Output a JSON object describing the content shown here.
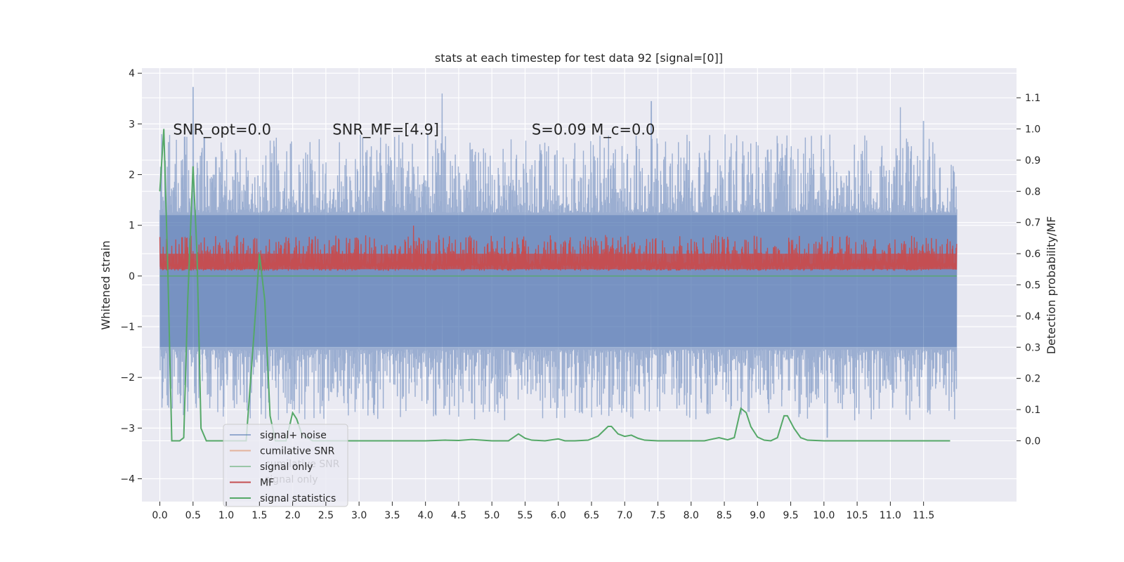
{
  "chart_data": {
    "type": "line",
    "title": "stats at each timestep for test data 92 [signal=[0]]",
    "xlabel": "",
    "ylabel": "Whitened strain",
    "y2label": "Detection probability/MF",
    "xlim": [
      -0.27,
      12.9
    ],
    "ylim": [
      -4.45,
      4.1
    ],
    "y2lim": [
      -0.195,
      1.195
    ],
    "x_ticks": [
      0.0,
      0.5,
      1.0,
      1.5,
      2.0,
      2.5,
      3.0,
      3.5,
      4.0,
      4.5,
      5.0,
      5.5,
      6.0,
      6.5,
      7.0,
      7.5,
      8.0,
      8.5,
      9.0,
      9.5,
      10.0,
      10.5,
      11.0,
      11.5
    ],
    "x_tick_labels": [
      "0.0",
      "0.5",
      "1.0",
      "1.5",
      "2.0",
      "2.5",
      "3.0",
      "3.5",
      "4.0",
      "4.5",
      "5.0",
      "5.5",
      "6.0",
      "6.5",
      "7.0",
      "7.5",
      "8.0",
      "8.5",
      "9.0",
      "9.5",
      "10.0",
      "10.5",
      "11.0",
      "11.5"
    ],
    "y_ticks": [
      -4,
      -3,
      -2,
      -1,
      0,
      1,
      2,
      3,
      4
    ],
    "y_tick_labels": [
      "−4",
      "−3",
      "−2",
      "−1",
      "0",
      "1",
      "2",
      "3",
      "4"
    ],
    "y2_ticks": [
      0.0,
      0.1,
      0.2,
      0.3,
      0.4,
      0.5,
      0.6,
      0.7,
      0.8,
      0.9,
      1.0,
      1.1
    ],
    "y2_tick_labels": [
      "0.0",
      "0.1",
      "0.2",
      "0.3",
      "0.4",
      "0.5",
      "0.6",
      "0.7",
      "0.8",
      "0.9",
      "1.0",
      "1.1"
    ],
    "grid": true,
    "legend_position": "lower-left",
    "annotations": [
      {
        "text": "SNR_opt=0.0",
        "x": 0.2,
        "y": 2.9
      },
      {
        "text": "SNR_MF=[4.9]",
        "x": 2.6,
        "y": 2.9
      },
      {
        "text": "S=0.09   M_c=0.0",
        "x": 5.6,
        "y": 2.9
      }
    ],
    "series": [
      {
        "name": "signal+ noise",
        "color": "#4c72b0",
        "axis": "left",
        "x_range": [
          0.0,
          12.0
        ],
        "envelope_upper_range": [
          1.2,
          3.7
        ],
        "envelope_lower_range": [
          -3.2,
          -1.4
        ],
        "peaks": [
          {
            "x": 0.5,
            "y": 3.72
          },
          {
            "x": 4.25,
            "y": 3.6
          },
          {
            "x": 7.4,
            "y": 3.44
          },
          {
            "x": 10.05,
            "y": -3.18
          },
          {
            "x": 11.15,
            "y": 3.33
          },
          {
            "x": 11.5,
            "y": 3.05
          }
        ]
      },
      {
        "name": "cumilative SNR",
        "color": "#dd8452",
        "axis": "left",
        "values": []
      },
      {
        "name": "signal only",
        "color": "#55a868",
        "axis": "left",
        "x_range": [
          0.0,
          12.0
        ],
        "constant": 0.0
      },
      {
        "name": "MF",
        "color": "#c44e52",
        "axis": "right",
        "x_range": [
          0.0,
          12.0
        ],
        "typical_range": [
          0.54,
          0.66
        ],
        "peak": {
          "x": 3.82,
          "y": 0.69
        }
      },
      {
        "name": "signal statistics",
        "color": "#55a868",
        "axis": "right",
        "x": [
          0.0,
          0.06,
          0.12,
          0.18,
          0.22,
          0.3,
          0.36,
          0.42,
          0.5,
          0.56,
          0.62,
          0.7,
          1.0,
          1.3,
          1.42,
          1.5,
          1.58,
          1.66,
          1.74,
          1.9,
          2.0,
          2.06,
          2.14,
          2.22,
          2.3,
          2.4,
          2.6,
          3.0,
          4.0,
          4.3,
          4.5,
          4.7,
          5.0,
          5.25,
          5.4,
          5.5,
          5.6,
          5.8,
          6.0,
          6.1,
          6.25,
          6.45,
          6.6,
          6.75,
          6.8,
          6.9,
          7.0,
          7.1,
          7.2,
          7.3,
          7.5,
          7.8,
          8.2,
          8.42,
          8.55,
          8.65,
          8.75,
          8.83,
          8.9,
          9.0,
          9.1,
          9.2,
          9.3,
          9.4,
          9.45,
          9.55,
          9.65,
          9.75,
          10.0,
          11.0,
          11.9
        ],
        "values": [
          0.8,
          1.0,
          0.55,
          0.0,
          0.0,
          0.0,
          0.01,
          0.45,
          0.88,
          0.6,
          0.04,
          0.0,
          0.0,
          0.0,
          0.35,
          0.6,
          0.45,
          0.08,
          0.0,
          0.0,
          0.09,
          0.07,
          0.02,
          0.01,
          0.0,
          0.0,
          0.0,
          0.0,
          0.0,
          0.002,
          0.001,
          0.004,
          0.0,
          0.0,
          0.022,
          0.008,
          0.002,
          0.0,
          0.006,
          0.0,
          0.0,
          0.002,
          0.015,
          0.046,
          0.046,
          0.022,
          0.014,
          0.018,
          0.008,
          0.002,
          0.0,
          0.0,
          0.0,
          0.01,
          0.003,
          0.01,
          0.104,
          0.09,
          0.045,
          0.012,
          0.002,
          0.0,
          0.01,
          0.08,
          0.08,
          0.04,
          0.01,
          0.002,
          0.0,
          0.0,
          0.0
        ]
      }
    ],
    "legend_entries": [
      {
        "label": "signal+ noise",
        "color": "#4c72b0",
        "opacity": 0.55
      },
      {
        "label": "cumilative SNR",
        "color": "#dd8452",
        "opacity": 0.55
      },
      {
        "label": "signal only",
        "color": "#55a868",
        "opacity": 0.55
      },
      {
        "label": "MF",
        "color": "#c44e52",
        "opacity": 1.0
      },
      {
        "label": "signal statistics",
        "color": "#55a868",
        "opacity": 1.0
      }
    ],
    "ghost_legend": [
      {
        "label": "cumilative SNR"
      },
      {
        "label": "signal only"
      }
    ]
  }
}
